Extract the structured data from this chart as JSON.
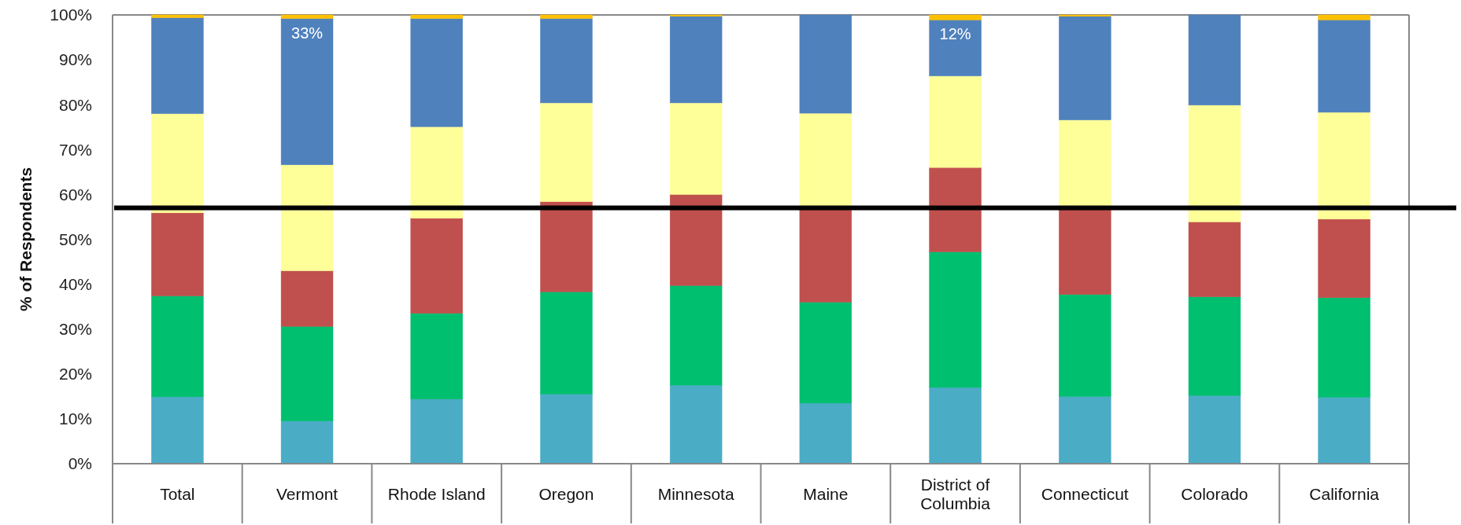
{
  "chart_data": {
    "type": "bar",
    "stacked": true,
    "ylabel": "% of Respondents",
    "categories": [
      "Total",
      "Vermont",
      "Rhode Island",
      "Oregon",
      "Minnesota",
      "Maine",
      "District of Columbia",
      "Connecticut",
      "Colorado",
      "California"
    ],
    "series": [
      {
        "color": "#4bacc6",
        "values": [
          14.9,
          9.5,
          14.4,
          15.5,
          17.5,
          13.5,
          17.0,
          15.0,
          15.2,
          14.8
        ]
      },
      {
        "color": "#00bf6f",
        "values": [
          22.5,
          21.1,
          19.1,
          22.8,
          22.2,
          22.5,
          30.2,
          22.7,
          22.0,
          22.2
        ]
      },
      {
        "color": "#c0504d",
        "values": [
          18.5,
          12.4,
          21.2,
          20.1,
          20.3,
          21.0,
          18.8,
          19.3,
          16.7,
          17.5
        ]
      },
      {
        "color": "#ffff99",
        "values": [
          22.1,
          23.6,
          20.4,
          22.0,
          20.4,
          21.1,
          20.4,
          19.6,
          26.0,
          23.8
        ]
      },
      {
        "color": "#4f81bd",
        "values": [
          21.4,
          32.6,
          24.1,
          18.8,
          19.3,
          21.9,
          12.5,
          23.1,
          20.1,
          20.6
        ],
        "value_labels": [
          null,
          "33%",
          null,
          null,
          null,
          null,
          "12%",
          null,
          null,
          null
        ]
      },
      {
        "color": "#ffc000",
        "values": [
          0.6,
          0.8,
          0.8,
          0.8,
          0.3,
          0,
          1.1,
          0.3,
          0,
          1.1
        ]
      }
    ],
    "ylim": [
      0,
      100
    ],
    "yticks": [
      {
        "value": 0,
        "label": "0%"
      },
      {
        "value": 10,
        "label": "10%"
      },
      {
        "value": 20,
        "label": "20%"
      },
      {
        "value": 30,
        "label": "30%"
      },
      {
        "value": 40,
        "label": "40%"
      },
      {
        "value": 50,
        "label": "50%"
      },
      {
        "value": 60,
        "label": "60%"
      },
      {
        "value": 70,
        "label": "70%"
      },
      {
        "value": 80,
        "label": "80%"
      },
      {
        "value": 90,
        "label": "90%"
      },
      {
        "value": 100,
        "label": "100%"
      }
    ],
    "ref_lines": [
      {
        "axis": "y",
        "value": 57.0,
        "color": "#000000"
      }
    ]
  }
}
